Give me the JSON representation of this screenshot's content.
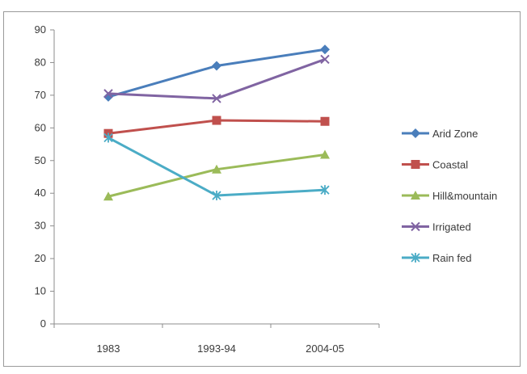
{
  "chart_data": {
    "type": "line",
    "categories": [
      "1983",
      "1993-94",
      "2004-05"
    ],
    "ylim": [
      0,
      90
    ],
    "yticks": [
      0,
      10,
      20,
      30,
      40,
      50,
      60,
      70,
      80,
      90
    ],
    "grid": false,
    "legend_position": "right",
    "series": [
      {
        "name": "Arid Zone",
        "values": [
          69.5,
          79,
          84
        ],
        "color": "#4a7ebb",
        "marker": "diamond"
      },
      {
        "name": "Coastal",
        "values": [
          58.3,
          62.3,
          62
        ],
        "color": "#c0504d",
        "marker": "square"
      },
      {
        "name": "Hill&mountain",
        "values": [
          39,
          47.3,
          51.8
        ],
        "color": "#9bbb59",
        "marker": "triangle"
      },
      {
        "name": "Irrigated",
        "values": [
          70.5,
          69,
          81
        ],
        "color": "#8064a2",
        "marker": "x"
      },
      {
        "name": "Rain fed",
        "values": [
          57,
          39.3,
          41
        ],
        "color": "#4bacc6",
        "marker": "star"
      }
    ]
  }
}
